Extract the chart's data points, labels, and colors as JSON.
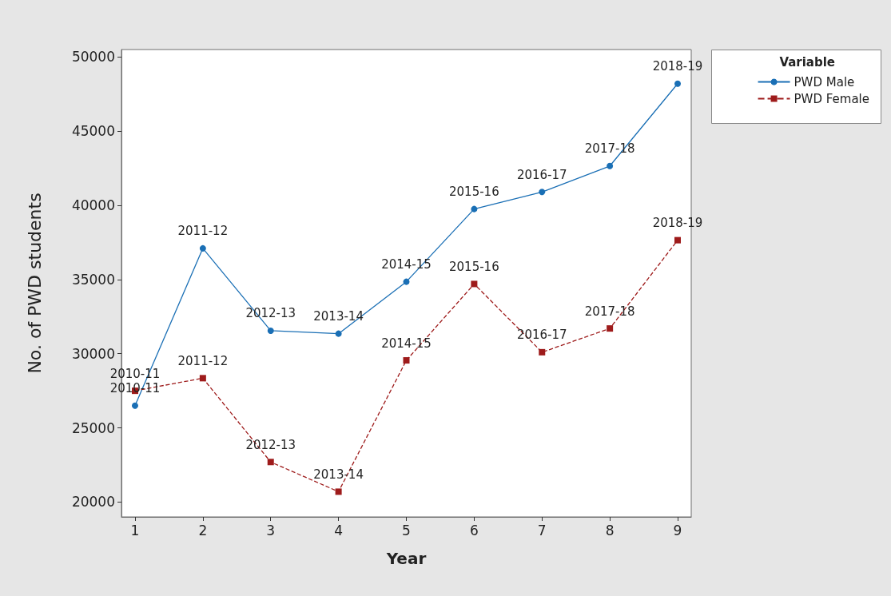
{
  "chart_data": {
    "type": "line",
    "xlabel": "Year",
    "ylabel": "No. of PWD students",
    "legend_title": "Variable",
    "legend": "top right",
    "x": [
      1,
      2,
      3,
      4,
      5,
      6,
      7,
      8,
      9
    ],
    "xlim": [
      0.8,
      9.2
    ],
    "xticks": [
      1,
      2,
      3,
      4,
      5,
      6,
      7,
      8,
      9
    ],
    "ylim": [
      19000,
      50500
    ],
    "yticks": [
      20000,
      25000,
      30000,
      35000,
      40000,
      45000,
      50000
    ],
    "grid": false,
    "series": [
      {
        "name": "PWD Male",
        "color": "#1a6fb5",
        "marker": "circle",
        "line_style": "solid",
        "values": [
          26500,
          37100,
          31550,
          31350,
          34850,
          39750,
          40900,
          42650,
          48200
        ]
      },
      {
        "name": "PWD Female",
        "color": "#9e1b1b",
        "marker": "square",
        "line_style": "dashed",
        "values": [
          27500,
          28350,
          22700,
          20700,
          29550,
          34700,
          30100,
          31700,
          37650
        ]
      }
    ],
    "annotations": [
      {
        "text": "2010-11",
        "x": 1,
        "y": 26500
      },
      {
        "text": "2011-12",
        "x": 2,
        "y": 37100
      },
      {
        "text": "2012-13",
        "x": 3,
        "y": 31550
      },
      {
        "text": "2013-14",
        "x": 4,
        "y": 31350
      },
      {
        "text": "2014-15",
        "x": 5,
        "y": 34850
      },
      {
        "text": "2015-16",
        "x": 6,
        "y": 39750
      },
      {
        "text": "2016-17",
        "x": 7,
        "y": 40900
      },
      {
        "text": "2017-18",
        "x": 8,
        "y": 42650
      },
      {
        "text": "2018-19",
        "x": 9,
        "y": 48200
      },
      {
        "text": "2010-11",
        "x": 1,
        "y": 27500
      },
      {
        "text": "2011-12",
        "x": 2,
        "y": 28350
      },
      {
        "text": "2012-13",
        "x": 3,
        "y": 22700
      },
      {
        "text": "2013-14",
        "x": 4,
        "y": 20700
      },
      {
        "text": "2014-15",
        "x": 5,
        "y": 29550
      },
      {
        "text": "2015-16",
        "x": 6,
        "y": 34700
      },
      {
        "text": "2016-17",
        "x": 7,
        "y": 30100
      },
      {
        "text": "2017-18",
        "x": 8,
        "y": 31700
      },
      {
        "text": "2018-19",
        "x": 9,
        "y": 37650
      }
    ]
  }
}
